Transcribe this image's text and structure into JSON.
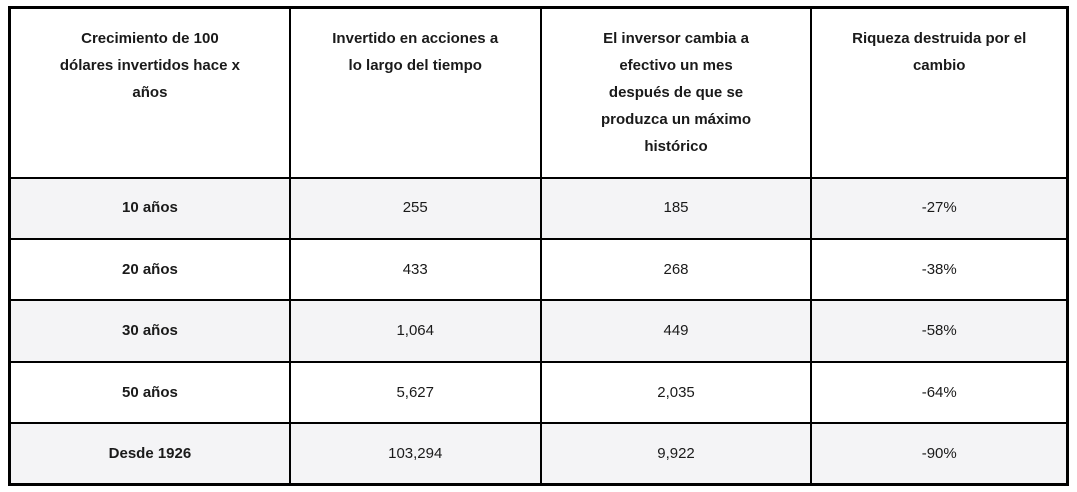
{
  "chart_data": {
    "type": "table",
    "columns": [
      "Crecimiento de 100\ndólares invertidos hace x\naños",
      "Invertido en acciones a\nlo largo del tiempo",
      "El inversor cambia a\nefectivo un mes\ndespués de que se\nproduzca un máximo\nhistórico",
      "Riqueza destruida por el\ncambio"
    ],
    "rows": [
      [
        "10 años",
        "255",
        "185",
        "-27%"
      ],
      [
        "20 años",
        "433",
        "268",
        "-38%"
      ],
      [
        "30 años",
        "1,064",
        "449",
        "-58%"
      ],
      [
        "50 años",
        "5,627",
        "2,035",
        "-64%"
      ],
      [
        "Desde 1926",
        "103,294",
        "9,922",
        "-90%"
      ]
    ]
  },
  "colors": {
    "border": "#000000",
    "header_background": "#ffffff",
    "row_alt_background": "#f4f4f6",
    "row_background": "#ffffff",
    "text": "#1a1a1a"
  }
}
